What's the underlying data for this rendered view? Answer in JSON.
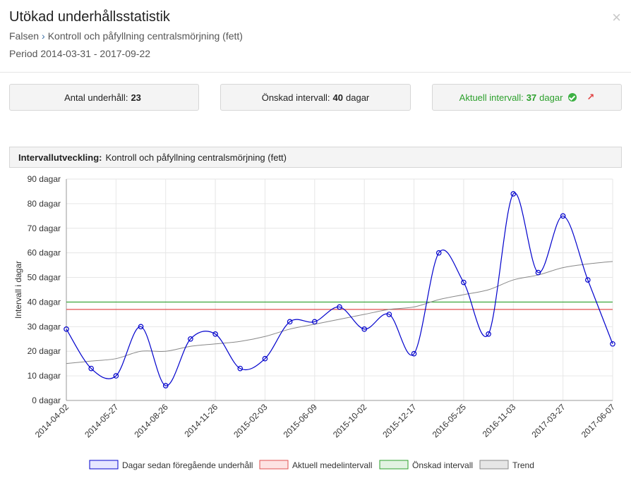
{
  "header": {
    "title": "Utökad underhållsstatistik",
    "breadcrumb_parent": "Falsen",
    "breadcrumb_sep": "›",
    "breadcrumb_current": "Kontroll och påfyllning centralsmörjning (fett)",
    "period": "Period 2014-03-31 - 2017-09-22",
    "close_icon": "×"
  },
  "stats": {
    "count_label": "Antal underhåll:",
    "count_value": "23",
    "desired_label": "Önskad intervall:",
    "desired_value": "40",
    "desired_unit": "dagar",
    "current_label": "Aktuell intervall:",
    "current_value": "37",
    "current_unit": "dagar",
    "arrow_icon": "↗"
  },
  "section": {
    "label": "Intervallutveckling:",
    "subject": "Kontroll och påfyllning centralsmörjning (fett)"
  },
  "chart_data": {
    "type": "line",
    "ylabel": "Intervall i dagar",
    "ylim": [
      0,
      90
    ],
    "yticks": [
      "0 dagar",
      "10 dagar",
      "20 dagar",
      "30 dagar",
      "40 dagar",
      "50 dagar",
      "60 dagar",
      "70 dagar",
      "80 dagar",
      "90 dagar"
    ],
    "xticks": [
      "2014-04-02",
      "2014-05-27",
      "2014-08-26",
      "2014-11-26",
      "2015-02-03",
      "2015-06-09",
      "2015-10-02",
      "2015-12-17",
      "2016-05-25",
      "2016-11-03",
      "2017-03-27",
      "2017-06-07"
    ],
    "grid": true,
    "legend_position": "bottom",
    "series": [
      {
        "name": "Dagar sedan föregående underhåll",
        "color": "#0000cc",
        "values": [
          29,
          13,
          10,
          30,
          6,
          25,
          27,
          13,
          17,
          32,
          32,
          38,
          29,
          35,
          19,
          60,
          48,
          27,
          84,
          52,
          75,
          49,
          23
        ]
      },
      {
        "name": "Aktuell medelintervall",
        "color": "#e05050",
        "values": [
          37,
          37
        ]
      },
      {
        "name": "Önskad intervall",
        "color": "#2ca02c",
        "values": [
          40,
          40
        ]
      },
      {
        "name": "Trend",
        "color": "#888888",
        "values": [
          15,
          16,
          17,
          20,
          20,
          22,
          23,
          24,
          26,
          29,
          31,
          33,
          35,
          37,
          38,
          41,
          43,
          45,
          49,
          51,
          54,
          55.5,
          56.5
        ]
      }
    ]
  }
}
